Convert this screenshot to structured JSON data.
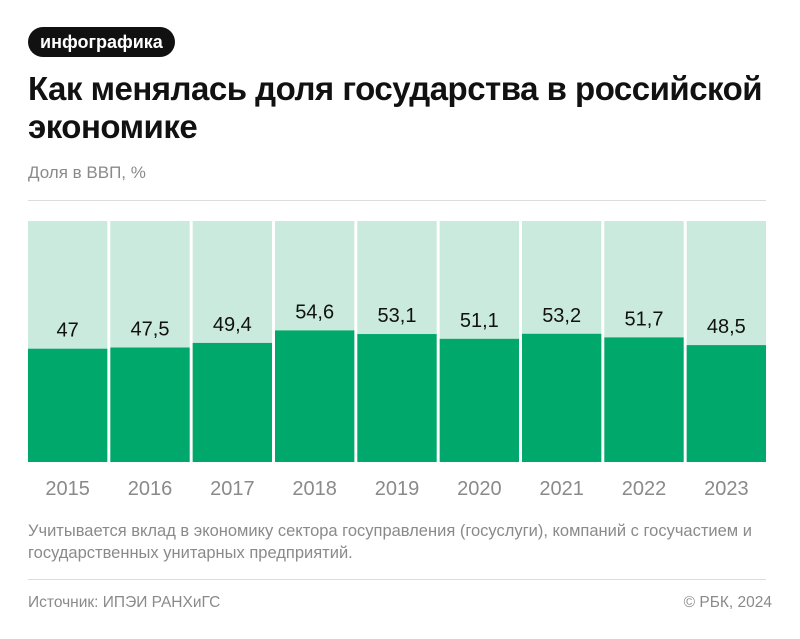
{
  "badge": "инфографика",
  "title": "Как менялась доля государства в российской экономике",
  "subtitle": "Доля в ВВП, %",
  "note": "Учитывается вклад в экономику сектора госуправления (госуслуги), компаний с госучастием и государственных унитарных предприятий.",
  "source": "Источник: ИПЭИ РАНХиГС",
  "copyright": "© РБК, 2024",
  "colors": {
    "bar": "#00a86b",
    "bar_background": "#c9eadc",
    "value_label": "#111111",
    "axis_label": "#8a8a8a"
  },
  "chart_data": {
    "type": "bar",
    "categories": [
      "2015",
      "2016",
      "2017",
      "2018",
      "2019",
      "2020",
      "2021",
      "2022",
      "2023"
    ],
    "values": [
      47,
      47.5,
      49.4,
      54.6,
      53.1,
      51.1,
      53.2,
      51.7,
      48.5
    ],
    "value_labels": [
      "47",
      "47,5",
      "49,4",
      "54,6",
      "53,1",
      "51,1",
      "53,2",
      "51,7",
      "48,5"
    ],
    "ylabel": "Доля в ВВП, %",
    "ylim": [
      0,
      100
    ],
    "grid": false,
    "legend": "none"
  }
}
